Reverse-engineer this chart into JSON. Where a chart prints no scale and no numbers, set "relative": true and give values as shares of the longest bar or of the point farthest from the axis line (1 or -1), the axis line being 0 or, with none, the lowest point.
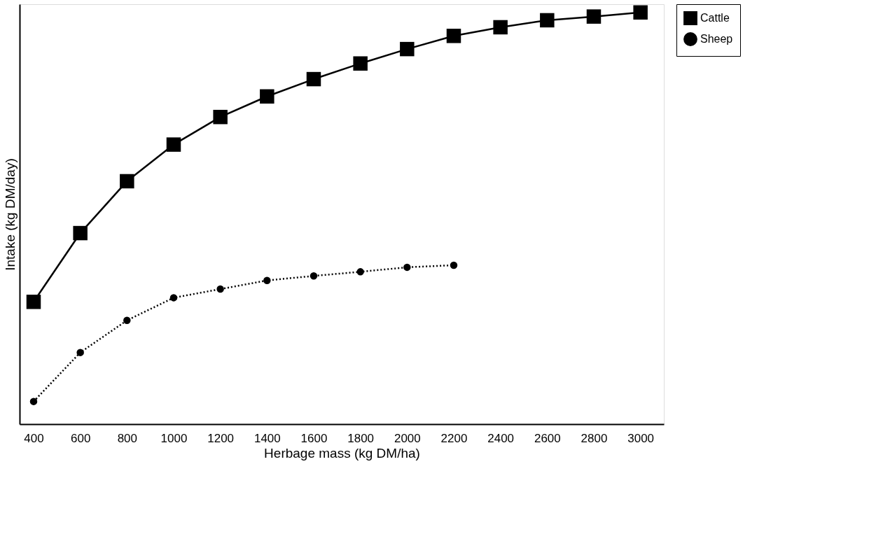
{
  "chart_data": {
    "type": "line",
    "xlabel": "Herbage mass (kg DM/ha)",
    "ylabel": "Intake (kg DM/day)",
    "relative": true,
    "x": [
      400,
      600,
      800,
      1000,
      1200,
      1400,
      1600,
      1800,
      2000,
      2200,
      2400,
      2600,
      2800,
      3000
    ],
    "xlim": [
      340,
      3100
    ],
    "xticks": [
      400,
      600,
      800,
      1000,
      1200,
      1400,
      1600,
      1800,
      2000,
      2200,
      2400,
      2600,
      2800,
      3000
    ],
    "grid": false,
    "legend": "right",
    "series": [
      {
        "name": "Cattle",
        "color": "#000000",
        "marker": "square",
        "line_style": "solid",
        "values": [
          0.297,
          0.464,
          0.59,
          0.679,
          0.746,
          0.796,
          0.838,
          0.876,
          0.911,
          0.943,
          0.964,
          0.981,
          0.99,
          1.0
        ]
      },
      {
        "name": "Sheep",
        "color": "#000000",
        "marker": "circle",
        "line_style": "dotted",
        "values": [
          0.055,
          0.174,
          0.252,
          0.307,
          0.328,
          0.349,
          0.36,
          0.37,
          0.381,
          0.386,
          null,
          null,
          null,
          null
        ]
      }
    ]
  }
}
